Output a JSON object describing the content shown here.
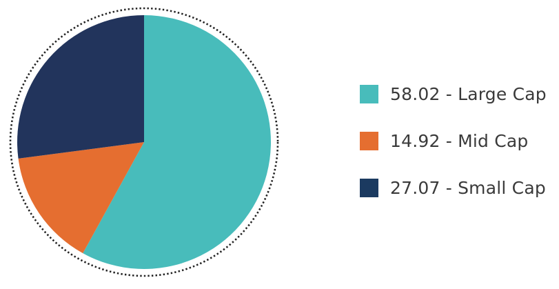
{
  "chart_data": {
    "type": "pie",
    "title": "",
    "slices": [
      {
        "label": "Large Cap",
        "value": 58.02,
        "display": "58.02 - Large Cap",
        "color": "#48BCBB"
      },
      {
        "label": "Mid Cap",
        "value": 14.92,
        "display": "14.92 - Mid Cap",
        "color": "#E56E30"
      },
      {
        "label": "Small Cap",
        "value": 27.07,
        "display": "27.07 - Small Cap",
        "color": "#22345C"
      }
    ],
    "legend_position": "right",
    "outline": "dotted"
  },
  "legend": {
    "items": [
      {
        "text": "58.02 - Large Cap",
        "color": "#48BCBB"
      },
      {
        "text": "14.92 - Mid Cap",
        "color": "#E56E30"
      },
      {
        "text": "27.07 - Small Cap",
        "color": "#1B3A60"
      }
    ]
  }
}
